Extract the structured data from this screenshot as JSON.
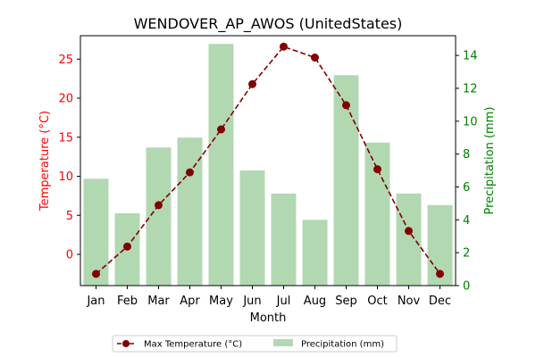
{
  "chart_data": {
    "type": "bar",
    "title": "WENDOVER_AP_AWOS (UnitedStates)",
    "xlabel": "Month",
    "ylabel_left": "Temperature (°C)",
    "ylabel_right": "Precipitation (mm)",
    "categories": [
      "Jan",
      "Feb",
      "Mar",
      "Apr",
      "May",
      "Jun",
      "Jul",
      "Aug",
      "Sep",
      "Oct",
      "Nov",
      "Dec"
    ],
    "left_axis": {
      "ylim": [
        -4.0,
        28.0
      ],
      "ticks": [
        0,
        5,
        10,
        15,
        20,
        25
      ],
      "color": "#ff0000"
    },
    "right_axis": {
      "ylim": [
        0,
        15.2
      ],
      "ticks": [
        0,
        2,
        4,
        6,
        8,
        10,
        12,
        14
      ],
      "color": "#008000"
    },
    "series": [
      {
        "name": "Max Temperature (°C)",
        "type": "line",
        "axis": "left",
        "color": "#800000",
        "line_style": "dashed",
        "marker": "circle",
        "values": [
          -2.5,
          1.0,
          6.3,
          10.5,
          16.0,
          21.8,
          26.6,
          25.2,
          19.1,
          10.9,
          3.0,
          -2.5
        ]
      },
      {
        "name": "Precipitation (mm)",
        "type": "bar",
        "axis": "right",
        "color": "#b2d8b2",
        "values": [
          6.5,
          4.4,
          8.4,
          9.0,
          14.7,
          7.0,
          5.6,
          4.0,
          12.8,
          8.7,
          5.6,
          4.9
        ]
      }
    ],
    "grid": false,
    "legend": {
      "placement": "bottom-center",
      "columns": 2,
      "entries": [
        "Max Temperature (°C)",
        "Precipitation (mm)"
      ]
    }
  }
}
